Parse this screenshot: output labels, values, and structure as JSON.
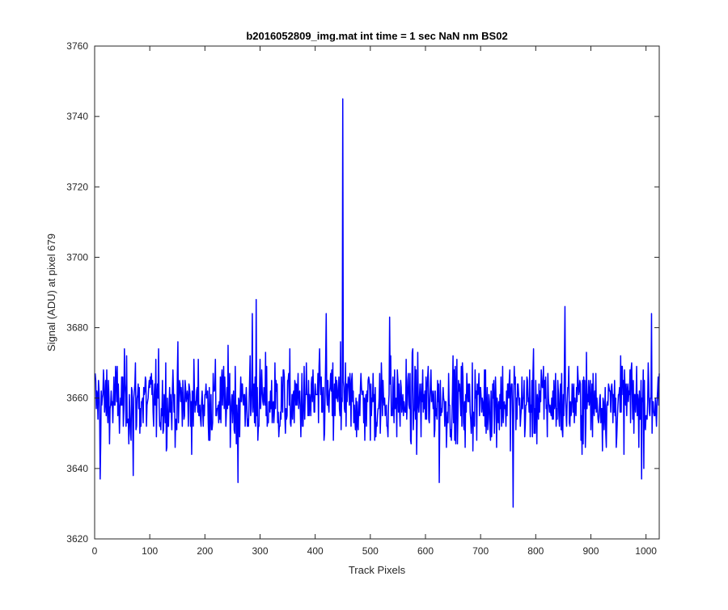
{
  "chart_data": {
    "type": "line",
    "title": "b2016052809_img.mat int time = 1 sec  NaN nm BS02",
    "xlabel": "Track Pixels",
    "ylabel": "Signal (ADU) at pixel 679",
    "xlim": [
      0,
      1024
    ],
    "ylim": [
      3620,
      3760
    ],
    "xticks": [
      0,
      100,
      200,
      300,
      400,
      500,
      600,
      700,
      800,
      900,
      1000
    ],
    "yticks": [
      3620,
      3640,
      3660,
      3680,
      3700,
      3720,
      3740,
      3760
    ],
    "grid": false,
    "legend": "none",
    "series": [
      {
        "color": "#0000ff",
        "noise": {
          "n_points": 1024,
          "x_start": 1,
          "baseline": 3659,
          "spread": 6,
          "min_clip": 3637,
          "max_clip": 3684
        },
        "features": [
          {
            "x": 10,
            "y": 3637
          },
          {
            "x": 70,
            "y": 3638
          },
          {
            "x": 260,
            "y": 3636
          },
          {
            "x": 293,
            "y": 3688
          },
          {
            "x": 286,
            "y": 3684
          },
          {
            "x": 420,
            "y": 3684
          },
          {
            "x": 446,
            "y": 3676
          },
          {
            "x": 448,
            "y": 3660
          },
          {
            "x": 450,
            "y": 3745
          },
          {
            "x": 452,
            "y": 3663
          },
          {
            "x": 454,
            "y": 3656
          },
          {
            "x": 535,
            "y": 3683
          },
          {
            "x": 625,
            "y": 3636
          },
          {
            "x": 759,
            "y": 3629
          },
          {
            "x": 853,
            "y": 3686
          },
          {
            "x": 992,
            "y": 3637
          },
          {
            "x": 1010,
            "y": 3684
          }
        ]
      }
    ]
  }
}
